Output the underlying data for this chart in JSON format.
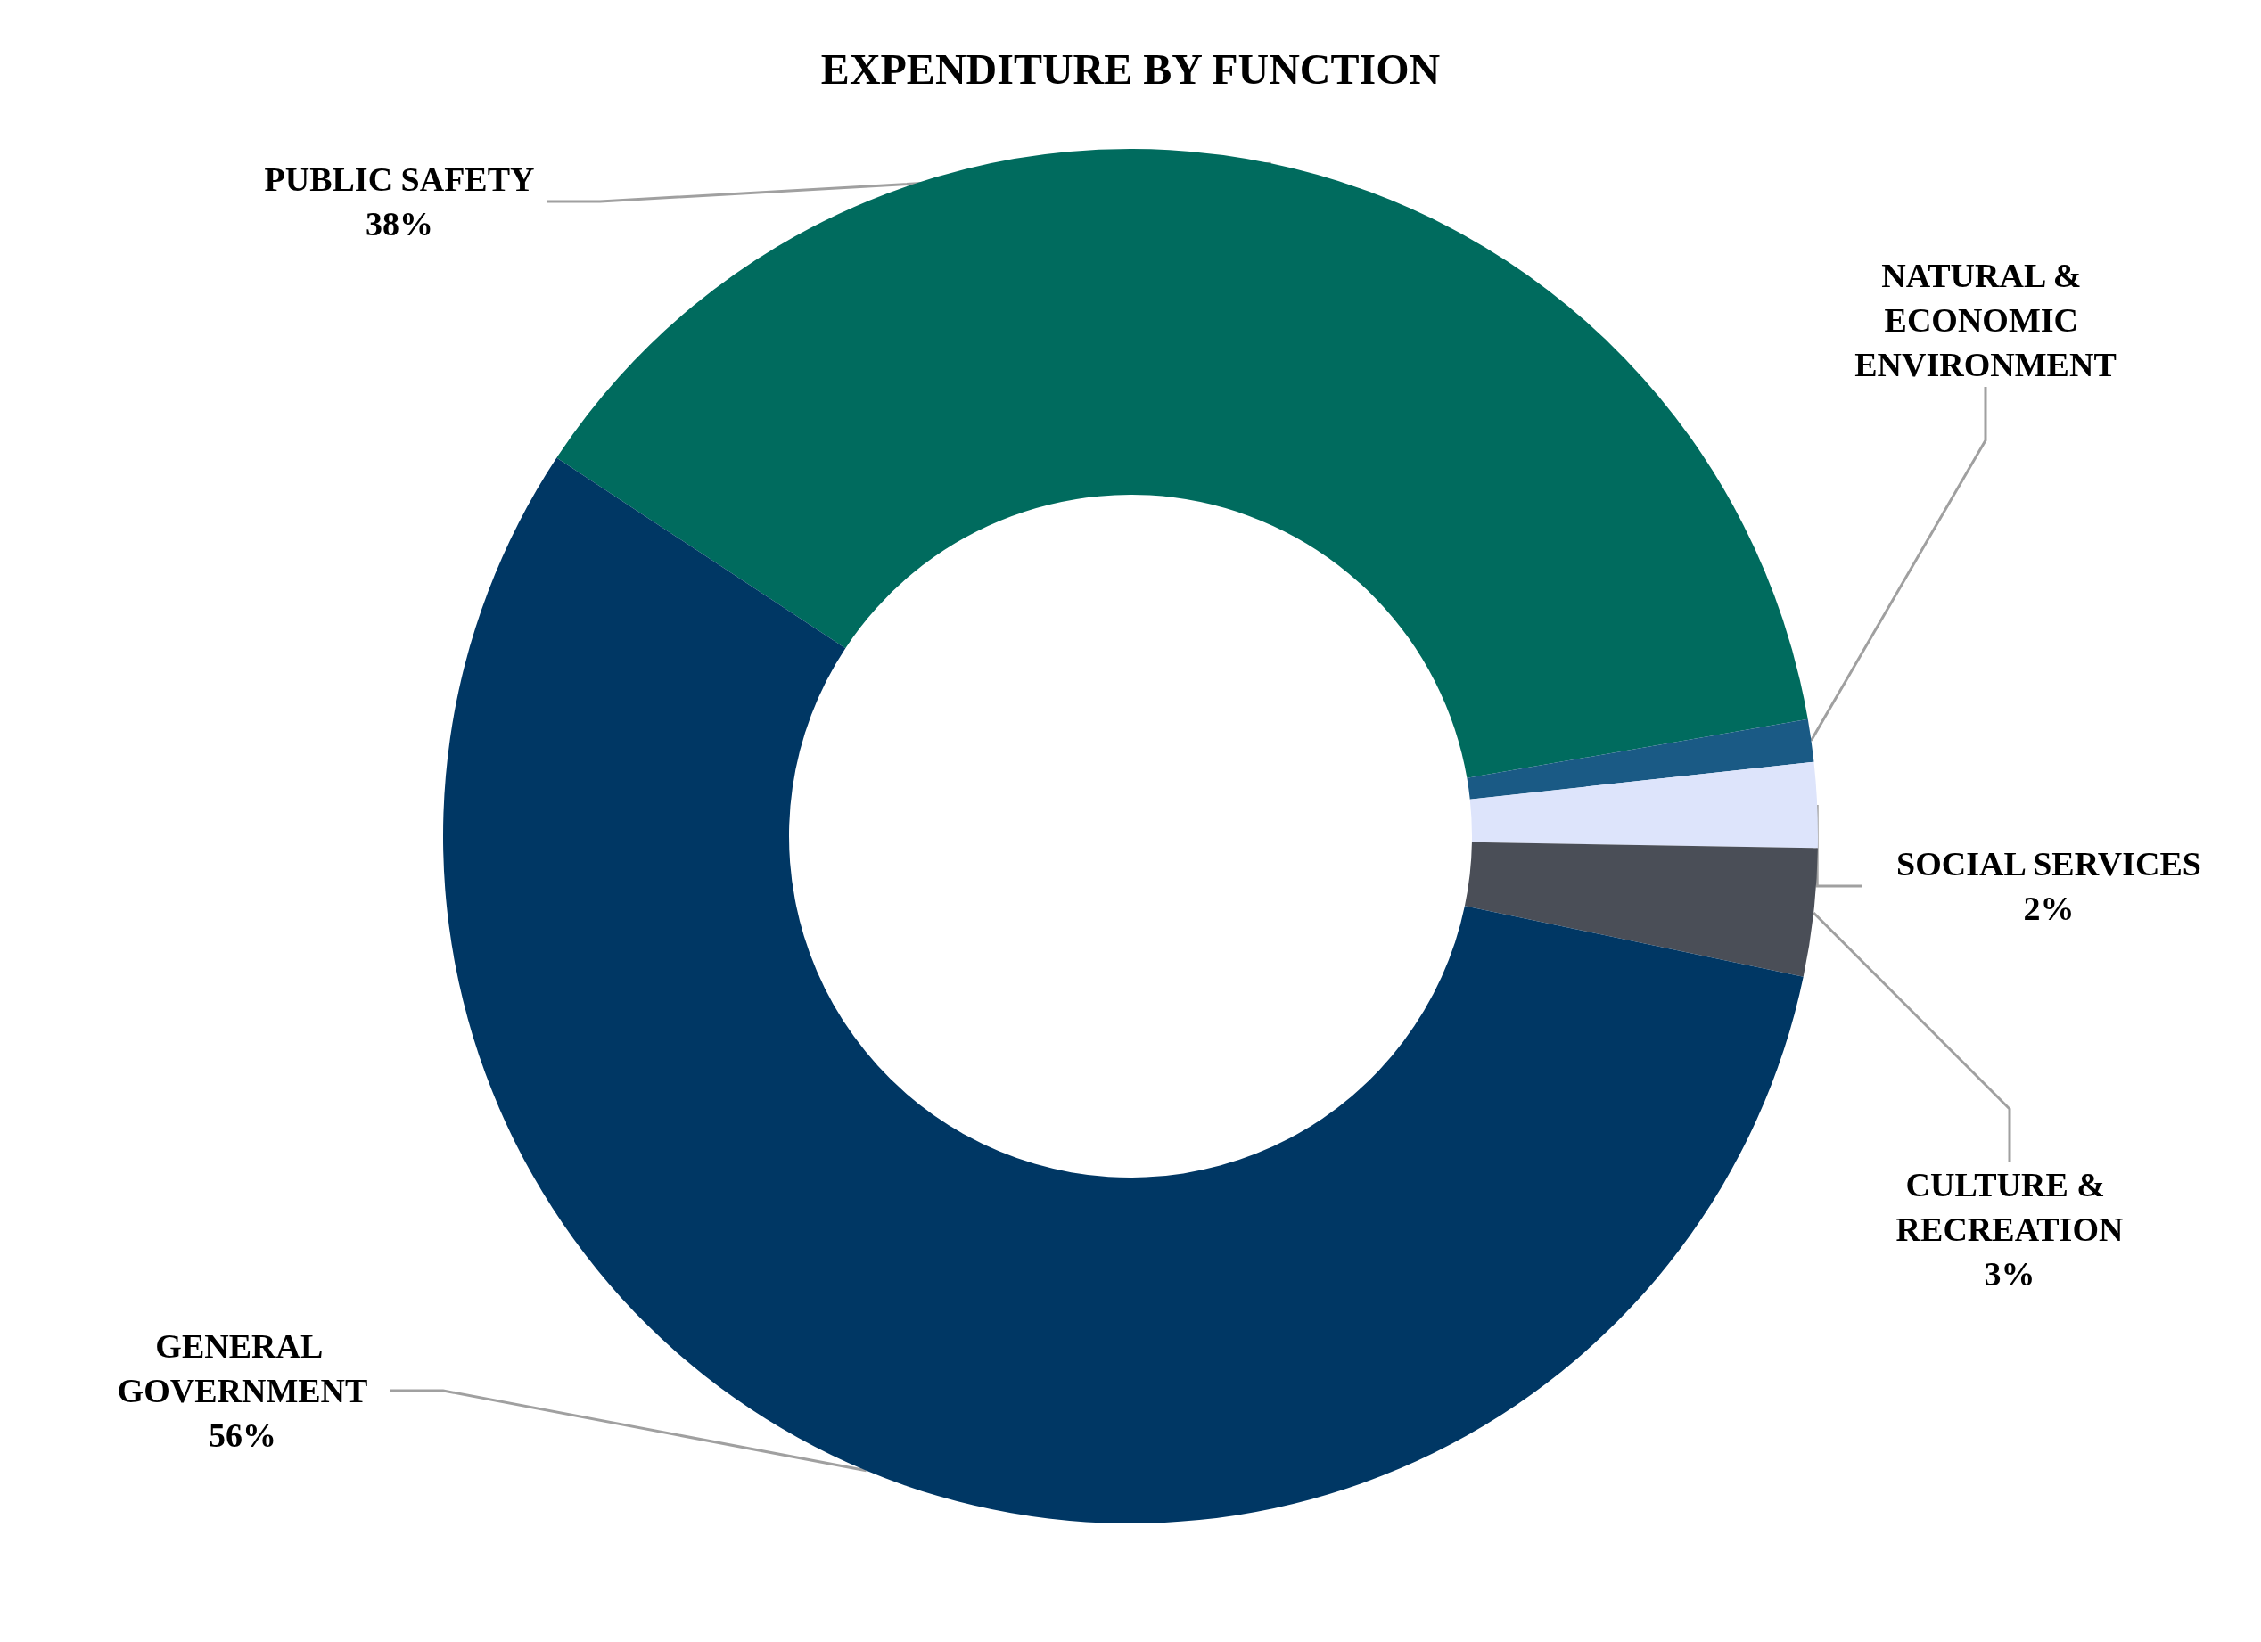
{
  "chart_data": {
    "type": "donut",
    "title": "EXPENDITURE BY FUNCTION",
    "categories": [
      "PUBLIC SAFETY",
      "NATURAL & ECONOMIC ENVIRONMENT",
      "SOCIAL SERVICES",
      "CULTURE & RECREATION",
      "GENERAL GOVERNMENT"
    ],
    "values": [
      38,
      1,
      2,
      3,
      56
    ],
    "value_labels": [
      "38%",
      null,
      "2%",
      "3%",
      "56%"
    ],
    "colors": [
      "#006b5e",
      "#1a5a85",
      "#dde4fb",
      "#4a4e57",
      "#003764"
    ],
    "legend": false
  }
}
